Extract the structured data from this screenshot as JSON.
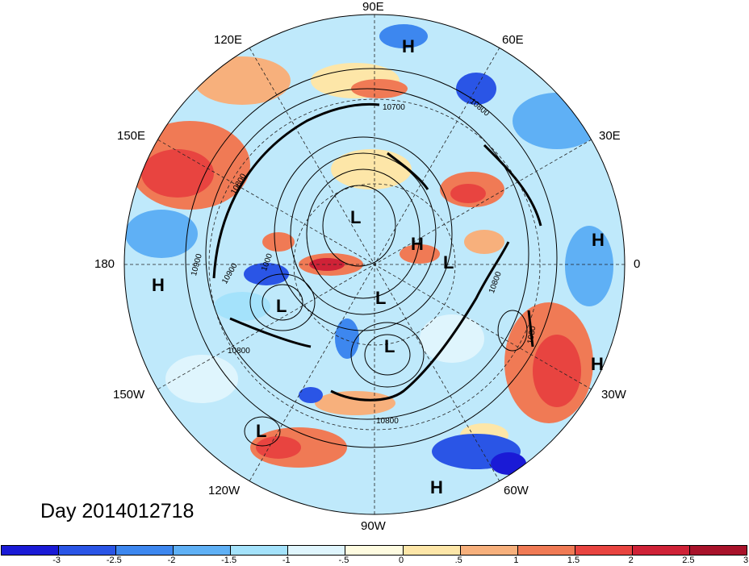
{
  "map": {
    "projection": "north-polar-stereographic",
    "lon_labels": [
      {
        "key": "90e",
        "text": "90E"
      },
      {
        "key": "60e",
        "text": "60E"
      },
      {
        "key": "30e",
        "text": "30E"
      },
      {
        "key": "0",
        "text": "0"
      },
      {
        "key": "30w",
        "text": "30W"
      },
      {
        "key": "60w",
        "text": "60W"
      },
      {
        "key": "90w",
        "text": "90W"
      },
      {
        "key": "120w",
        "text": "120W"
      },
      {
        "key": "150w",
        "text": "150W"
      },
      {
        "key": "180",
        "text": "180"
      },
      {
        "key": "150e",
        "text": "150E"
      },
      {
        "key": "120e",
        "text": "120E"
      }
    ],
    "pressure_centers": [
      {
        "type": "H"
      },
      {
        "type": "H"
      },
      {
        "type": "H"
      },
      {
        "type": "H"
      },
      {
        "type": "H"
      },
      {
        "type": "H"
      },
      {
        "type": "L"
      },
      {
        "type": "L"
      },
      {
        "type": "L"
      },
      {
        "type": "L"
      },
      {
        "type": "L"
      },
      {
        "type": "L"
      }
    ],
    "contour_labels": [
      "10700",
      "10800",
      "10800",
      "10900",
      "10900",
      "10800",
      "10800",
      "10800",
      "1030",
      "1000"
    ],
    "colors": {
      "neg3": "#1a1ad6",
      "neg25": "#2a55e6",
      "neg2": "#3d87ef",
      "neg15": "#5fb0f5",
      "neg1": "#a4e2fb",
      "neg05": "#dff5fd",
      "pos0": "#fefbe0",
      "pos05": "#fde6a8",
      "pos1": "#f7b07c",
      "pos15": "#f07a55",
      "pos2": "#e84440",
      "pos25": "#cf2237",
      "pos3": "#a8122a"
    }
  },
  "day_label": "Day 2014012718",
  "colorbar": {
    "colors": [
      "#1a1ad6",
      "#2a55e6",
      "#3d87ef",
      "#5fb0f5",
      "#a4e2fb",
      "#dff5fd",
      "#fefbe0",
      "#fde6a8",
      "#f7b07c",
      "#f07a55",
      "#e84440",
      "#cf2237",
      "#a8122a"
    ],
    "ticks": [
      "-3",
      "-2.5",
      "-2",
      "-1.5",
      "-1",
      "-.5",
      "0",
      ".5",
      "1",
      "1.5",
      "2",
      "2.5",
      "3"
    ]
  }
}
